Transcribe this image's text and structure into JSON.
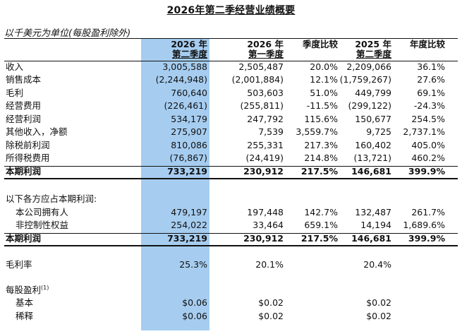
{
  "title": "2026年第二季经营业绩概要",
  "unit_note": "以千美元为单位(每股盈利除外)",
  "columns": [
    {
      "line1": "2026 年",
      "line2": "第二季度"
    },
    {
      "line1": "2026 年",
      "line2": "第一季度"
    },
    {
      "line1": "季度比较",
      "line2": ""
    },
    {
      "line1": "2025 年",
      "line2": "第二季度"
    },
    {
      "line1": "年度比较",
      "line2": ""
    }
  ],
  "rows": [
    {
      "label": "收入",
      "v": [
        "3,005,588",
        "2,505,487",
        "20.0%",
        "2,209,066",
        "36.1%"
      ]
    },
    {
      "label": "销售成本",
      "v": [
        "(2,244,948)",
        "(2,001,884)",
        "12.1%",
        "(1,759,267)",
        "27.6%"
      ]
    },
    {
      "label": "毛利",
      "v": [
        "760,640",
        "503,603",
        "51.0%",
        "449,799",
        "69.1%"
      ]
    },
    {
      "label": "经营费用",
      "v": [
        "(226,461)",
        "(255,811)",
        "-11.5%",
        "(299,122)",
        "-24.3%"
      ]
    },
    {
      "label": "经营利润",
      "v": [
        "534,179",
        "247,792",
        "115.6%",
        "150,677",
        "254.5%"
      ]
    },
    {
      "label": "其他收入，净额",
      "v": [
        "275,907",
        "7,539",
        "3,559.7%",
        "9,725",
        "2,737.1%"
      ]
    },
    {
      "label": "除税前利润",
      "v": [
        "810,086",
        "255,331",
        "217.3%",
        "160,402",
        "405.0%"
      ]
    },
    {
      "label": "所得税费用",
      "v": [
        "(76,867)",
        "(24,419)",
        "214.8%",
        "(13,721)",
        "460.2%"
      ]
    },
    {
      "label": "本期利润",
      "v": [
        "733,219",
        "230,912",
        "217.5%",
        "146,681",
        "399.9%"
      ]
    },
    {
      "label": "以下各方应占本期利润:",
      "v": [
        "",
        "",
        "",
        "",
        ""
      ]
    },
    {
      "label": "本公司拥有人",
      "v": [
        "479,197",
        "197,448",
        "142.7%",
        "132,487",
        "261.7%"
      ]
    },
    {
      "label": "非控制性权益",
      "v": [
        "254,022",
        "33,464",
        "659.1%",
        "14,194",
        "1,689.6%"
      ]
    },
    {
      "label": "本期利润",
      "v": [
        "733,219",
        "230,912",
        "217.5%",
        "146,681",
        "399.9%"
      ]
    },
    {
      "label": "毛利率",
      "v": [
        "25.3%",
        "20.1%",
        "",
        "20.4%",
        ""
      ]
    },
    {
      "label": "每股盈利",
      "footnote": "(1)",
      "v": [
        "",
        "",
        "",
        "",
        ""
      ]
    },
    {
      "label": "基本",
      "v": [
        "$0.06",
        "$0.02",
        "",
        "$0.02",
        ""
      ]
    },
    {
      "label": "稀释",
      "v": [
        "$0.06",
        "$0.02",
        "",
        "$0.02",
        ""
      ]
    }
  ]
}
